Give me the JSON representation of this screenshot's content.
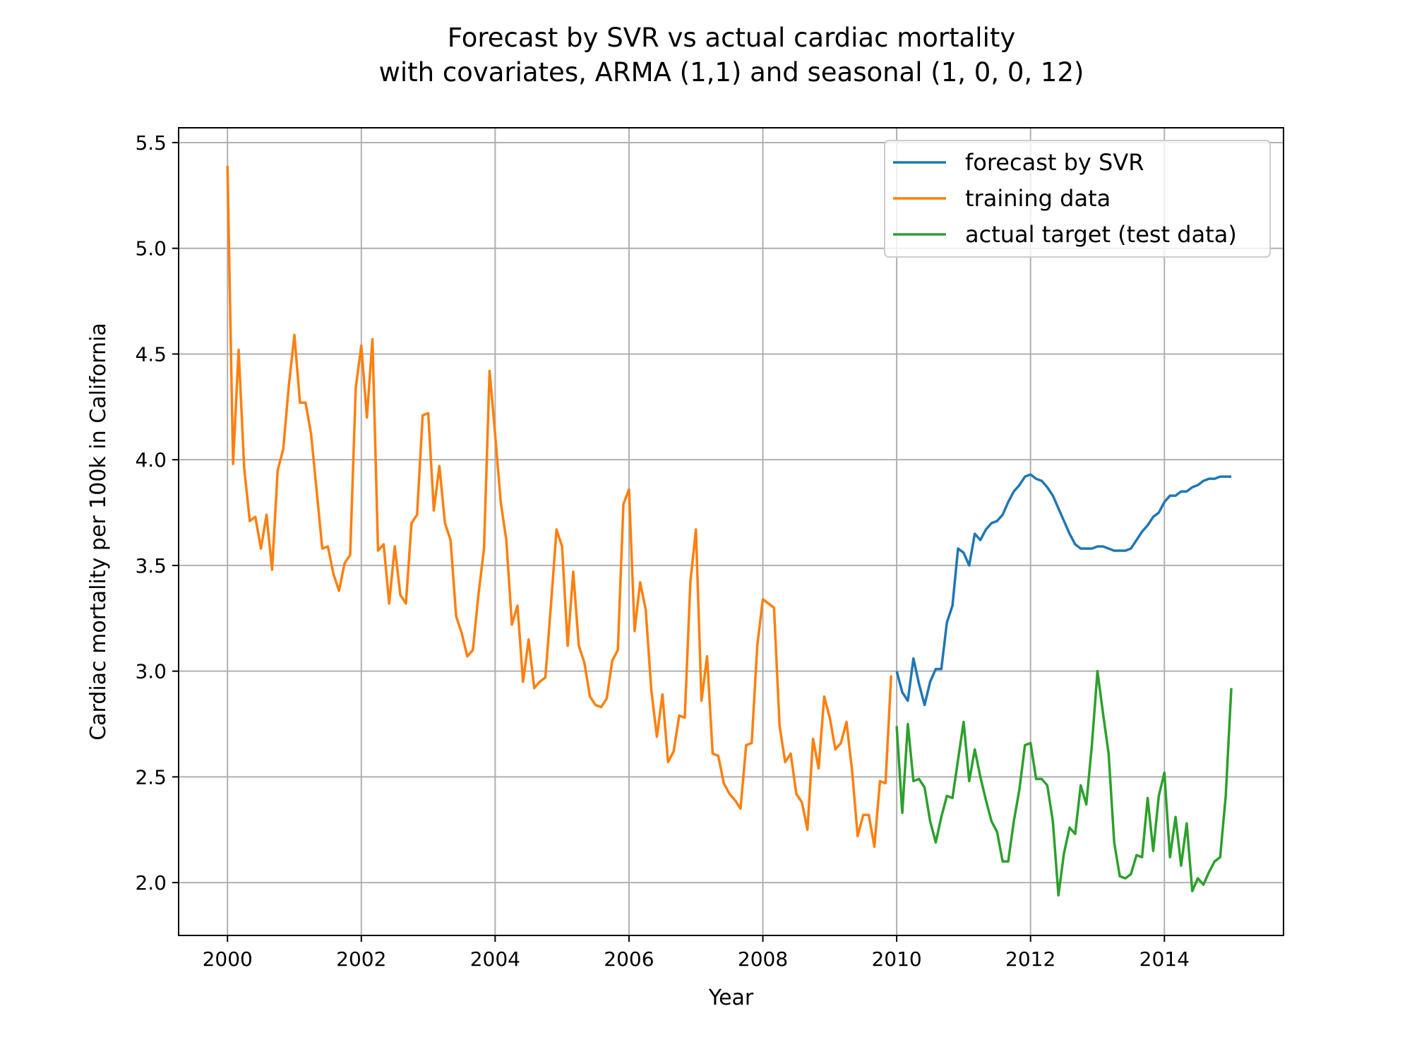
{
  "chart_data": {
    "type": "line",
    "title_lines": [
      "Forecast by SVR vs actual cardiac mortality",
      "with covariates, ARMA (1,1) and seasonal (1, 0, 0, 12)"
    ],
    "xlabel": "Year",
    "ylabel": "Cardiac mortality per 100k in California",
    "xlim": [
      1999.27,
      2015.78
    ],
    "ylim": [
      1.75,
      5.57
    ],
    "x_ticks": [
      2000,
      2002,
      2004,
      2006,
      2008,
      2010,
      2012,
      2014
    ],
    "x_tick_labels": [
      "2000",
      "2002",
      "2004",
      "2006",
      "2008",
      "2010",
      "2012",
      "2014"
    ],
    "y_ticks": [
      2.0,
      2.5,
      3.0,
      3.5,
      4.0,
      4.5,
      5.0,
      5.5
    ],
    "y_tick_labels": [
      "2.0",
      "2.5",
      "3.0",
      "3.5",
      "4.0",
      "4.5",
      "5.0",
      "5.5"
    ],
    "grid": true,
    "legend_position": "top-right",
    "series": [
      {
        "name": "forecast by SVR",
        "color": "#1f77b4",
        "x_start": 2010.0,
        "x_step": 0.0833333,
        "values": [
          3.0,
          2.9,
          2.86,
          3.06,
          2.94,
          2.84,
          2.95,
          3.01,
          3.01,
          3.23,
          3.31,
          3.58,
          3.56,
          3.5,
          3.65,
          3.62,
          3.67,
          3.7,
          3.71,
          3.74,
          3.8,
          3.85,
          3.88,
          3.92,
          3.93,
          3.91,
          3.9,
          3.87,
          3.83,
          3.77,
          3.71,
          3.65,
          3.6,
          3.58,
          3.58,
          3.58,
          3.59,
          3.59,
          3.58,
          3.57,
          3.57,
          3.57,
          3.58,
          3.62,
          3.66,
          3.69,
          3.73,
          3.75,
          3.8,
          3.83,
          3.83,
          3.85,
          3.85,
          3.87,
          3.88,
          3.9,
          3.91,
          3.91,
          3.92,
          3.92,
          3.92
        ]
      },
      {
        "name": "training data",
        "color": "#ff7f0e",
        "x_start": 2000.0,
        "x_step": 0.0833333,
        "values": [
          5.39,
          3.98,
          4.52,
          3.96,
          3.71,
          3.73,
          3.58,
          3.74,
          3.48,
          3.95,
          4.05,
          4.35,
          4.59,
          4.27,
          4.27,
          4.12,
          3.85,
          3.58,
          3.59,
          3.46,
          3.38,
          3.51,
          3.55,
          4.34,
          4.54,
          4.2,
          4.57,
          3.57,
          3.6,
          3.32,
          3.59,
          3.36,
          3.32,
          3.7,
          3.74,
          4.21,
          4.22,
          3.76,
          3.97,
          3.7,
          3.62,
          3.26,
          3.18,
          3.07,
          3.1,
          3.36,
          3.58,
          4.42,
          4.12,
          3.8,
          3.62,
          3.22,
          3.31,
          2.95,
          3.15,
          2.92,
          2.95,
          2.97,
          3.31,
          3.67,
          3.59,
          3.12,
          3.47,
          3.12,
          3.04,
          2.88,
          2.84,
          2.83,
          2.87,
          3.05,
          3.1,
          3.79,
          3.86,
          3.19,
          3.42,
          3.29,
          2.91,
          2.69,
          2.89,
          2.57,
          2.62,
          2.79,
          2.78,
          3.42,
          3.67,
          2.86,
          3.07,
          2.61,
          2.6,
          2.47,
          2.42,
          2.39,
          2.35,
          2.65,
          2.66,
          3.12,
          3.34,
          3.32,
          3.3,
          2.74,
          2.57,
          2.61,
          2.42,
          2.38,
          2.25,
          2.68,
          2.54,
          2.88,
          2.78,
          2.63,
          2.66,
          2.76,
          2.53,
          2.22,
          2.32,
          2.32,
          2.17,
          2.48,
          2.47,
          2.98
        ]
      },
      {
        "name": "actual target (test data)",
        "color": "#2ca02c",
        "x_start": 2010.0,
        "x_step": 0.0833333,
        "values": [
          2.74,
          2.33,
          2.75,
          2.48,
          2.49,
          2.45,
          2.29,
          2.19,
          2.31,
          2.41,
          2.4,
          2.58,
          2.76,
          2.48,
          2.63,
          2.5,
          2.39,
          2.29,
          2.24,
          2.1,
          2.1,
          2.29,
          2.44,
          2.65,
          2.66,
          2.49,
          2.49,
          2.46,
          2.29,
          1.94,
          2.14,
          2.26,
          2.23,
          2.46,
          2.37,
          2.65,
          3.0,
          2.8,
          2.61,
          2.19,
          2.03,
          2.02,
          2.04,
          2.13,
          2.12,
          2.4,
          2.15,
          2.41,
          2.52,
          2.12,
          2.31,
          2.08,
          2.28,
          1.96,
          2.02,
          1.99,
          2.05,
          2.1,
          2.12,
          2.41,
          2.92
        ]
      }
    ]
  }
}
